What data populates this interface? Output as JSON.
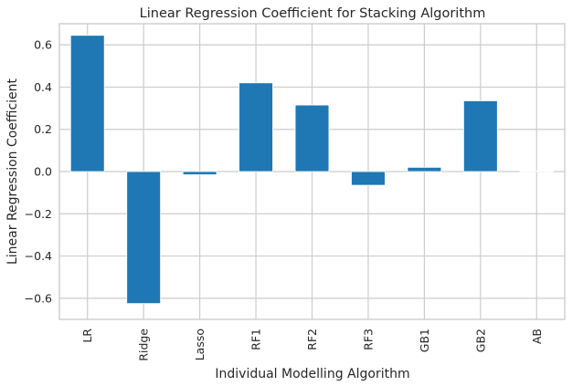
{
  "chart_data": {
    "type": "bar",
    "title": "Linear Regression Coefficient for Stacking Algorithm",
    "xlabel": "Individual Modelling Algorithm",
    "ylabel": "Linear Regression Coefficient",
    "categories": [
      "LR",
      "Ridge",
      "Lasso",
      "RF1",
      "RF2",
      "RF3",
      "GB1",
      "GB2",
      "AB"
    ],
    "values": [
      0.645,
      -0.625,
      -0.015,
      0.42,
      0.315,
      -0.065,
      0.02,
      0.335,
      0.003
    ],
    "ylim": [
      -0.7,
      0.7
    ],
    "yticks": [
      0.6,
      0.4,
      0.2,
      0.0,
      -0.2,
      -0.4,
      -0.6
    ],
    "ytick_labels": [
      "0.6",
      "0.4",
      "0.2",
      "0.0",
      "−0.2",
      "−0.4",
      "−0.6"
    ],
    "grid": true,
    "colors": {
      "bar": "#1f77b4",
      "grid": "#cccccc",
      "text": "#262626"
    }
  }
}
